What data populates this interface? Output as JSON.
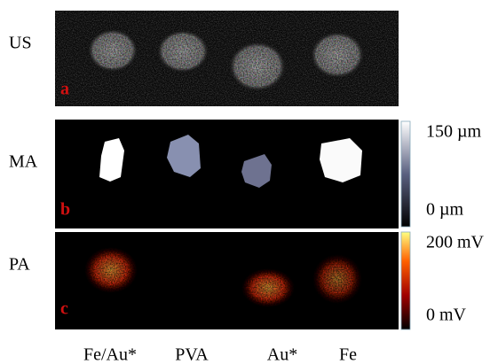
{
  "rows": [
    {
      "label": "US",
      "panel": "a"
    },
    {
      "label": "MA",
      "panel": "b",
      "colorbar": {
        "max": "150 µm",
        "min": "0 µm"
      }
    },
    {
      "label": "PA",
      "panel": "c",
      "colorbar": {
        "max": "200 mV",
        "min": "0 mV"
      }
    }
  ],
  "samples": [
    "Fe/Au*",
    "PVA",
    "Au*",
    "Fe"
  ]
}
